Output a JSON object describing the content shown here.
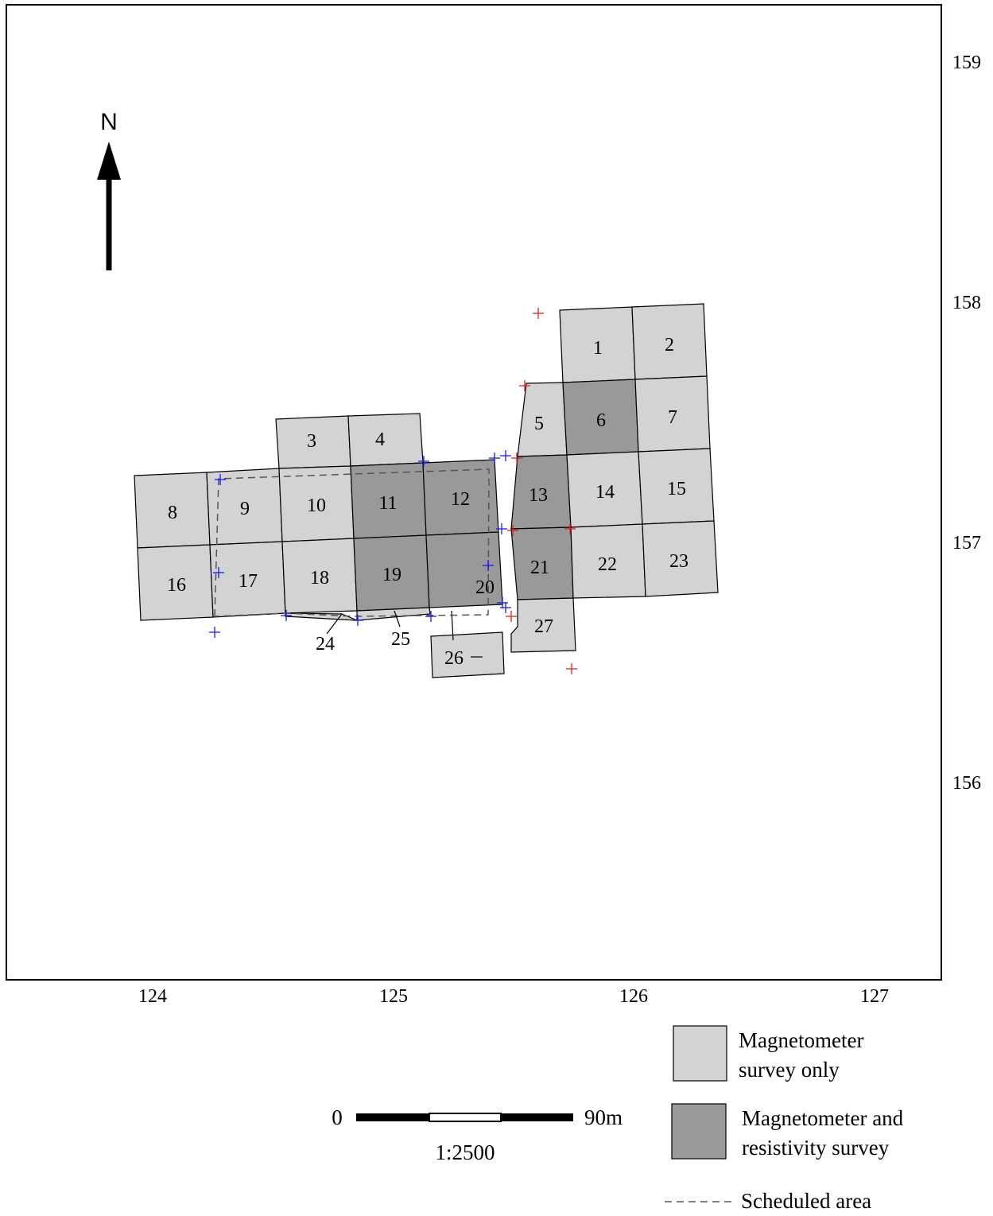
{
  "map": {
    "north_label": "N",
    "easting_labels": [
      "124",
      "125",
      "126",
      "127"
    ],
    "northing_labels": [
      "159",
      "158",
      "157",
      "156"
    ],
    "grid_labels": [
      "1",
      "2",
      "3",
      "4",
      "5",
      "6",
      "7",
      "8",
      "9",
      "10",
      "11",
      "12",
      "13",
      "14",
      "15",
      "16",
      "17",
      "18",
      "19",
      "20",
      "21",
      "22",
      "23",
      "24",
      "25",
      "26",
      "27"
    ],
    "magnetometer_and_resistivity_grids": [
      "6",
      "11",
      "12",
      "13",
      "19",
      "20",
      "21"
    ]
  },
  "scale_bar": {
    "start_label": "0",
    "end_label": "90m",
    "ratio_label": "1:2500"
  },
  "legend": {
    "magnetometer_only": "Magnetometer\nsurvey only",
    "magnetometer_resistivity": "Magnetometer and\nresistivity survey",
    "scheduled_area": "Scheduled area"
  },
  "colors": {
    "magnetometer_only": "#d3d3d3",
    "magnetometer_resistivity": "#999999",
    "blue_marker": "#1a1aff",
    "red_marker": "#e02020"
  }
}
